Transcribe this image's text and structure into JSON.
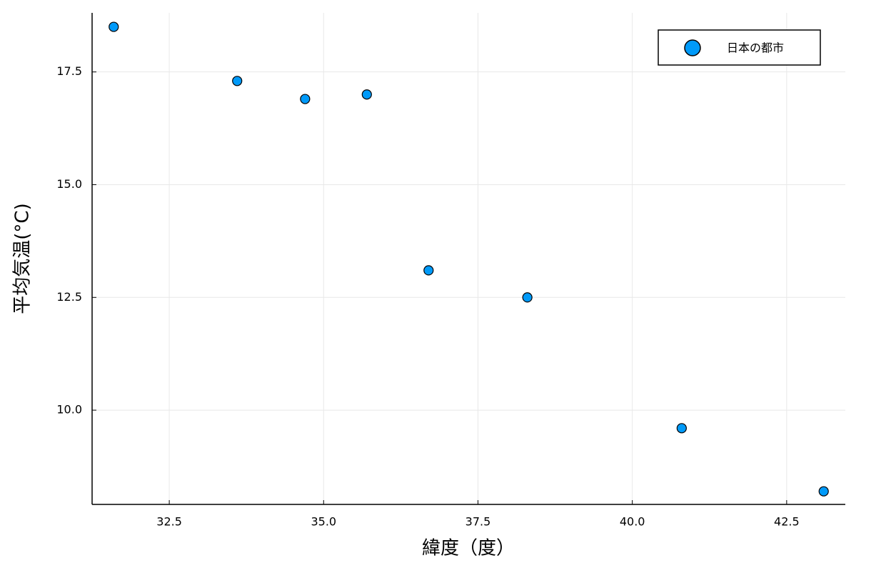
{
  "chart_data": {
    "type": "scatter",
    "x_label": "緯度（度）",
    "y_label": "平均気温(°C)",
    "series": [
      {
        "name": "日本の都市",
        "color": "#009af9",
        "x": [
          31.6,
          33.6,
          34.7,
          35.7,
          36.7,
          38.3,
          40.8,
          43.1
        ],
        "values": [
          18.5,
          17.3,
          16.9,
          17.0,
          13.1,
          12.5,
          9.6,
          8.2
        ]
      }
    ],
    "xlim": [
      31.25,
      43.45
    ],
    "xticks": [
      32.5,
      {
        "value": 35,
        "label": "35.0"
      },
      37.5,
      {
        "value": 40,
        "label": "40.0"
      },
      42.5
    ],
    "ylim": [
      7.91,
      18.81
    ],
    "yticks": [
      {
        "value": 10,
        "label": "10.0"
      },
      12.5,
      {
        "value": 15,
        "label": "15.0"
      },
      17.5
    ],
    "grid": true,
    "legend": "top-right"
  }
}
